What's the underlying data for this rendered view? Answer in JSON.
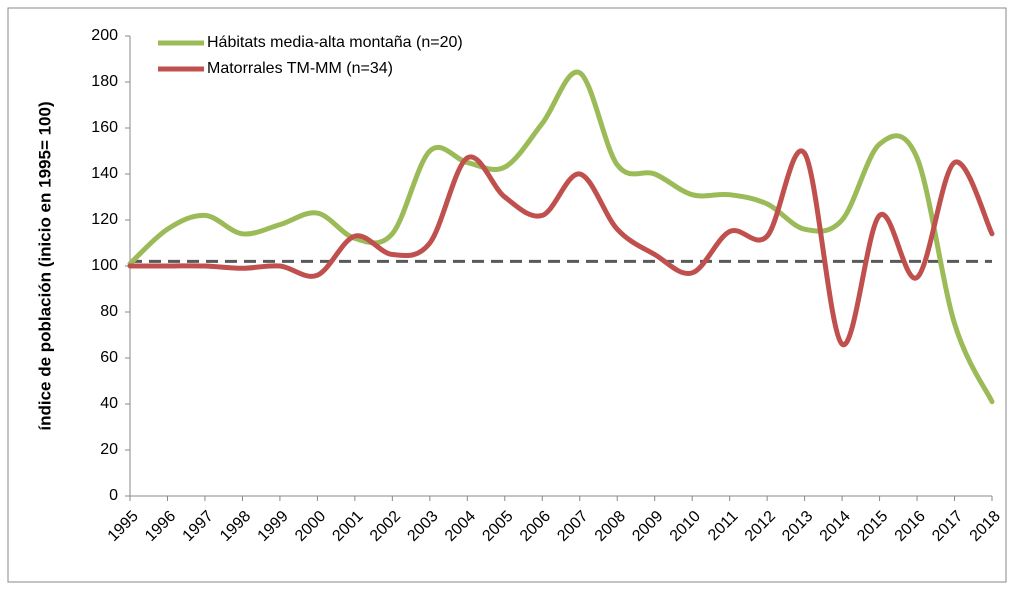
{
  "chart_data": {
    "type": "line",
    "y_label": "índice de población (inicio en 1995= 100)",
    "x": [
      "1995",
      "1996",
      "1997",
      "1998",
      "1999",
      "2000",
      "2001",
      "2002",
      "2003",
      "2004",
      "2005",
      "2006",
      "2007",
      "2008",
      "2009",
      "2010",
      "2011",
      "2012",
      "2013",
      "2014",
      "2015",
      "2016",
      "2017",
      "2018"
    ],
    "series": [
      {
        "name": "Hábitats media-alta montaña (n=20)",
        "color": "#9bbb59",
        "values": [
          101,
          116,
          122,
          114,
          118,
          123,
          112,
          114,
          150,
          145,
          143,
          162,
          184,
          144,
          140,
          131,
          131,
          127,
          116,
          120,
          153,
          147,
          75,
          41
        ]
      },
      {
        "name": "Matorrales TM-MM (n=34)",
        "color": "#c0504d",
        "values": [
          100,
          100,
          100,
          99,
          100,
          96,
          113,
          105,
          110,
          147,
          130,
          122,
          140,
          116,
          105,
          97,
          115,
          113,
          149,
          66,
          122,
          95,
          145,
          114
        ]
      }
    ],
    "reference_line": 102,
    "ylim": [
      0,
      200
    ],
    "yticks": [
      0,
      20,
      40,
      60,
      80,
      100,
      120,
      140,
      160,
      180,
      200
    ],
    "legend": "top-left"
  }
}
